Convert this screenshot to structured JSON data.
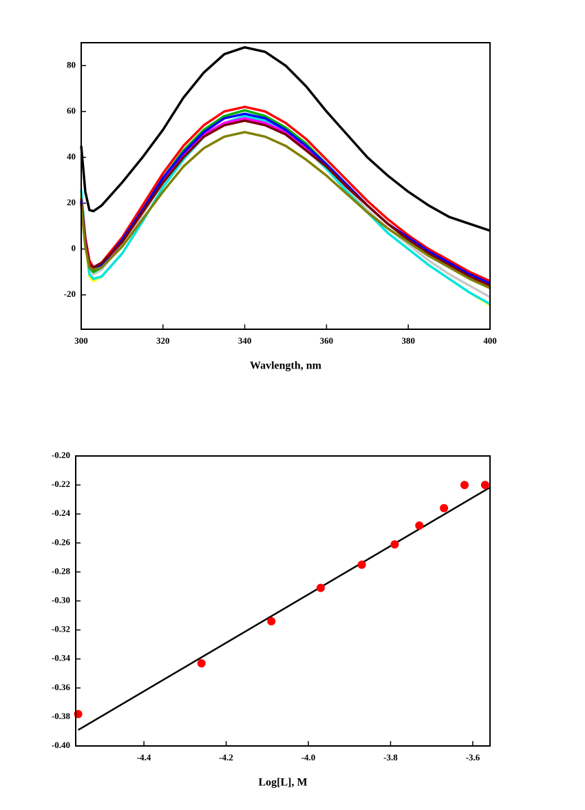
{
  "chart_data": [
    {
      "type": "line",
      "x_label": "Wavlength, nm",
      "x": [
        300,
        301,
        302,
        303,
        305,
        310,
        315,
        320,
        325,
        330,
        335,
        340,
        345,
        350,
        355,
        360,
        365,
        370,
        375,
        380,
        385,
        390,
        395,
        400
      ],
      "xlim": [
        300,
        400
      ],
      "xticks": [
        300,
        320,
        340,
        360,
        380,
        400
      ],
      "ylim": [
        -35,
        90
      ],
      "yticks": [
        -20,
        0,
        20,
        40,
        60,
        80
      ],
      "series": [
        {
          "color": "#000000",
          "values": [
            45,
            25,
            17,
            16.5,
            19,
            29,
            40,
            52,
            66,
            77,
            85,
            88,
            86,
            80,
            71,
            60,
            50,
            40,
            32,
            25,
            19,
            14,
            11,
            8
          ]
        },
        {
          "color": "#c8c8c8",
          "values": [
            22,
            3,
            -9,
            -11,
            -9,
            2,
            15,
            29,
            40,
            50,
            55,
            57,
            55,
            50,
            43,
            35,
            26,
            17,
            9,
            2,
            -5,
            -11,
            -16,
            -21
          ]
        },
        {
          "color": "#ffff00",
          "values": [
            24,
            4,
            -12,
            -14,
            -12,
            -2,
            12,
            27,
            39,
            49,
            55,
            58,
            56,
            51,
            44,
            35,
            25,
            16,
            7,
            0,
            -7,
            -13,
            -19,
            -24.5
          ]
        },
        {
          "color": "#00e5e5",
          "values": [
            26,
            5,
            -11,
            -13,
            -12,
            -2,
            12,
            27,
            39,
            49,
            55,
            58,
            56,
            51,
            44,
            35,
            25,
            16,
            7,
            0,
            -7,
            -13,
            -19,
            -24
          ]
        },
        {
          "color": "#00b000",
          "values": [
            20,
            2,
            -8,
            -10,
            -8,
            3,
            17,
            31,
            43,
            52,
            58,
            60.5,
            58,
            53,
            46,
            37,
            28,
            19,
            11,
            4,
            -2,
            -7,
            -13,
            -17
          ]
        },
        {
          "color": "#ff00ff",
          "values": [
            20,
            3,
            -8,
            -9,
            -7,
            3,
            16,
            30,
            41,
            50,
            55,
            57,
            55,
            51,
            44,
            36,
            28,
            19,
            11,
            5,
            -1,
            -7,
            -12,
            -16
          ]
        },
        {
          "color": "#ff0000",
          "values": [
            22,
            5,
            -5,
            -8,
            -6,
            5,
            19,
            33,
            45,
            54,
            60,
            62,
            60,
            55,
            48,
            39,
            30,
            21,
            13,
            6,
            0,
            -5,
            -10,
            -14
          ]
        },
        {
          "color": "#0000ff",
          "values": [
            21,
            3,
            -7,
            -9,
            -7,
            4,
            17,
            31,
            42,
            51,
            57,
            59,
            57,
            52,
            45,
            37,
            28,
            19,
            11,
            5,
            -1,
            -6,
            -11,
            -15
          ]
        },
        {
          "color": "#7a0000",
          "values": [
            20,
            2,
            -7,
            -8,
            -6,
            3,
            16,
            29,
            40,
            49,
            54,
            56,
            54,
            50,
            43,
            36,
            27,
            19,
            11,
            4,
            -2,
            -7,
            -12,
            -16
          ]
        },
        {
          "color": "#808000",
          "values": [
            19,
            1,
            -8,
            -9,
            -8,
            1,
            13,
            25,
            36,
            44,
            49,
            51,
            49,
            45,
            39,
            32,
            24,
            16,
            9,
            3,
            -3,
            -8,
            -13,
            -17
          ]
        }
      ]
    },
    {
      "type": "scatter",
      "x_label": "Log[L], M",
      "xlim": [
        -4.566,
        -3.558
      ],
      "xticks": [
        -4.4,
        -4.2,
        {
          "value": -4.0,
          "label": "-4.0"
        },
        -3.8,
        -3.6
      ],
      "ylim": [
        -0.4,
        -0.2
      ],
      "yticks": [
        {
          "value": -0.4,
          "label": "-0.40"
        },
        {
          "value": -0.38,
          "label": "-0.38"
        },
        {
          "value": -0.36,
          "label": "-0.36"
        },
        {
          "value": -0.34,
          "label": "-0.34"
        },
        {
          "value": -0.32,
          "label": "-0.32"
        },
        {
          "value": -0.3,
          "label": "-0.30"
        },
        {
          "value": -0.28,
          "label": "-0.28"
        },
        {
          "value": -0.26,
          "label": "-0.26"
        },
        {
          "value": -0.24,
          "label": "-0.24"
        },
        {
          "value": -0.22,
          "label": "-0.22"
        },
        {
          "value": -0.2,
          "label": "-0.20"
        }
      ],
      "series": [
        {
          "color": "#ff0000",
          "x": [
            -4.56,
            -4.26,
            -4.09,
            -3.97,
            -3.87,
            -3.79,
            -3.73,
            -3.67,
            -3.62,
            -3.57
          ],
          "values": [
            -0.378,
            -0.343,
            -0.314,
            -0.291,
            -0.275,
            -0.261,
            -0.248,
            -0.236,
            -0.22,
            -0.22
          ]
        }
      ],
      "fit_line": {
        "color": "#000000",
        "x": [
          -4.56,
          -3.56
        ],
        "values": [
          -0.389,
          -0.222
        ]
      }
    }
  ]
}
